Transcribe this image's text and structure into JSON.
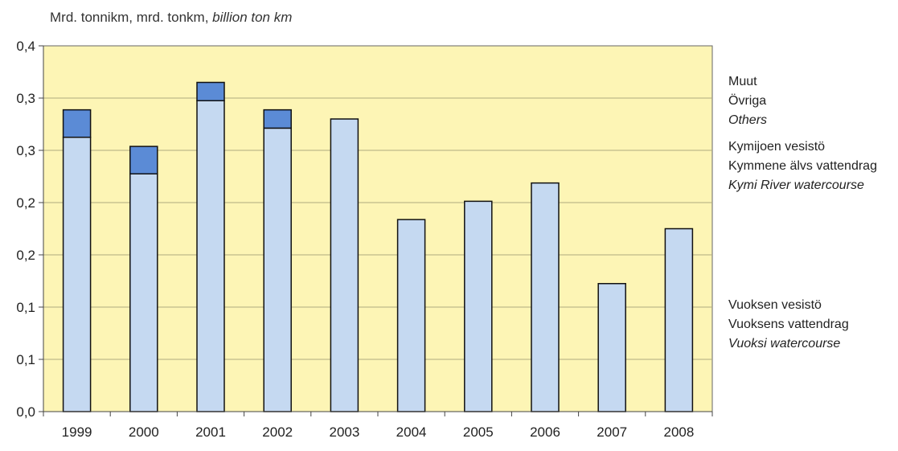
{
  "chart_data": {
    "type": "bar",
    "stacked": true,
    "unit_label": {
      "fi_sv": "Mrd. tonnikm, mrd. tonkm,",
      "en": "billion ton km"
    },
    "categories": [
      "1999",
      "2000",
      "2001",
      "2002",
      "2003",
      "2004",
      "2005",
      "2006",
      "2007",
      "2008"
    ],
    "y_ticks": [
      "0,0",
      "0,1",
      "0,1",
      "0,2",
      "0,2",
      "0,3",
      "0,3",
      "0,4"
    ],
    "ylim": [
      0,
      0.4
    ],
    "series": [
      {
        "name": "Vuoksen vesistö / Vuoksens vattendrag / Vuoksi watercourse",
        "color": "#c5d9f1",
        "values": [
          0.3,
          0.26,
          0.34,
          0.31,
          0.32,
          0.21,
          0.23,
          0.25,
          0.14,
          0.2
        ]
      },
      {
        "name": "Kymijoen vesistö / Kymmene älvs vattendrag / Kymi River watercourse",
        "color": "#c5d9f1",
        "values": [
          0,
          0,
          0,
          0,
          0,
          0,
          0,
          0,
          0,
          0
        ]
      },
      {
        "name": "Muut / Övriga / Others",
        "color": "#5b8bd6",
        "values": [
          0.03,
          0.03,
          0.02,
          0.02,
          0,
          0,
          0,
          0,
          0,
          0
        ]
      }
    ],
    "plot_background": "#fdf5b5",
    "grid": true,
    "legend_position": "right"
  },
  "legend": {
    "others": {
      "fi": "Muut",
      "sv": "Övriga",
      "en": "Others"
    },
    "kymi": {
      "fi": "Kymijoen vesistö",
      "sv": "Kymmene älvs vattendrag",
      "en": "Kymi River watercourse"
    },
    "vuoksi": {
      "fi": "Vuoksen vesistö",
      "sv": "Vuoksens vattendrag",
      "en": "Vuoksi watercourse"
    }
  }
}
